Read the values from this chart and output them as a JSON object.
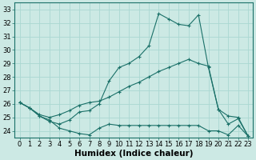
{
  "xlabel": "Humidex (Indice chaleur)",
  "background_color": "#cce9e4",
  "line_color": "#1a7068",
  "grid_color": "#aad8d2",
  "x": [
    0,
    1,
    2,
    3,
    4,
    5,
    6,
    7,
    8,
    9,
    10,
    11,
    12,
    13,
    14,
    15,
    16,
    17,
    18,
    19,
    20,
    21,
    22,
    23
  ],
  "line_top": [
    26.1,
    25.7,
    25.1,
    24.7,
    24.5,
    24.8,
    25.4,
    25.5,
    26.0,
    27.7,
    28.7,
    29.0,
    29.5,
    30.3,
    32.7,
    32.3,
    31.9,
    31.8,
    32.6,
    28.7,
    25.6,
    24.5,
    24.9,
    23.6
  ],
  "line_mid": [
    26.1,
    25.7,
    25.2,
    25.0,
    25.2,
    25.5,
    25.9,
    26.1,
    26.2,
    26.5,
    26.9,
    27.3,
    27.6,
    28.0,
    28.4,
    28.7,
    29.0,
    29.3,
    29.0,
    28.8,
    25.6,
    25.1,
    25.0,
    23.6
  ],
  "line_bot": [
    26.1,
    25.7,
    25.1,
    24.8,
    24.2,
    24.0,
    23.8,
    23.7,
    24.2,
    24.5,
    24.4,
    24.4,
    24.4,
    24.4,
    24.4,
    24.4,
    24.4,
    24.4,
    24.4,
    24.0,
    24.0,
    23.7,
    24.4,
    23.6
  ],
  "xlim": [
    -0.5,
    23.5
  ],
  "ylim": [
    23.5,
    33.5
  ],
  "yticks": [
    24,
    25,
    26,
    27,
    28,
    29,
    30,
    31,
    32,
    33
  ],
  "xticks": [
    0,
    1,
    2,
    3,
    4,
    5,
    6,
    7,
    8,
    9,
    10,
    11,
    12,
    13,
    14,
    15,
    16,
    17,
    18,
    19,
    20,
    21,
    22,
    23
  ],
  "tick_fontsize": 6.0,
  "xlabel_fontsize": 7.5
}
